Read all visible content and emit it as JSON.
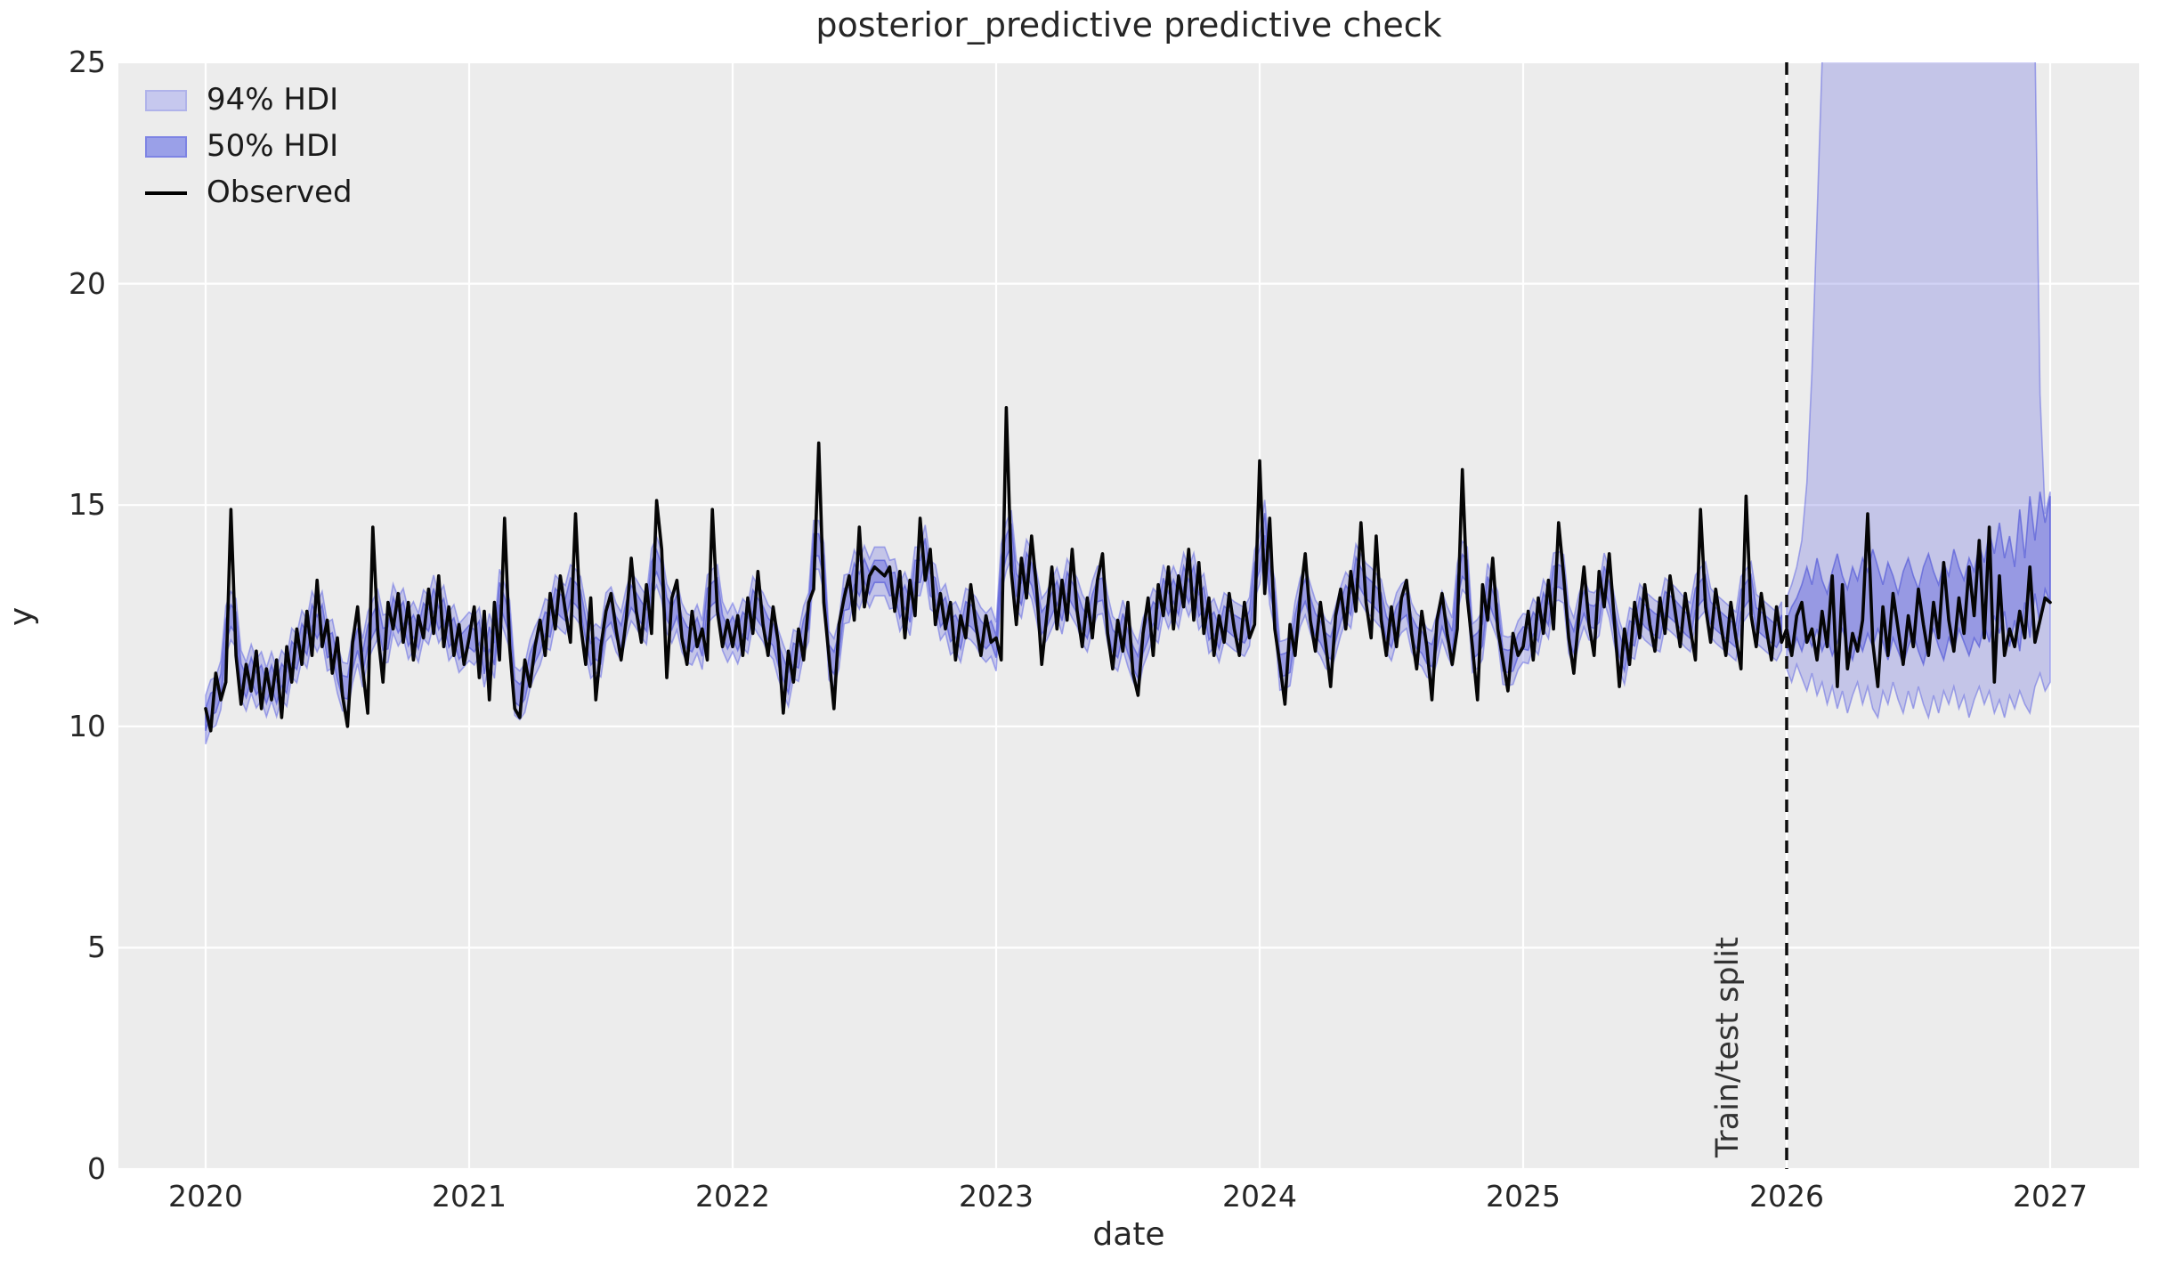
{
  "figure": {
    "title": "posterior_predictive predictive check",
    "xlabel": "date",
    "ylabel": "y",
    "plot_background": "#ececec",
    "grid_color": "#ffffff",
    "text_color": "#262626"
  },
  "legend": {
    "items": [
      {
        "label": "94% HDI",
        "type": "patch",
        "fill": "#c6c8ee",
        "edge": "#b0b3ea"
      },
      {
        "label": "50% HDI",
        "type": "patch",
        "fill": "#9aa0e8",
        "edge": "#7e84e4"
      },
      {
        "label": "Observed",
        "type": "line",
        "color": "#000000"
      }
    ]
  },
  "split": {
    "label": "Train/test split",
    "t": 2026.0,
    "line_color": "#0d0d0d"
  },
  "chart_data": {
    "type": "line",
    "title": "posterior_predictive predictive check",
    "xlabel": "date",
    "ylabel": "y",
    "xlim": [
      2019.669,
      2027.338
    ],
    "ylim": [
      0,
      25
    ],
    "grid": true,
    "legend_position": "upper left",
    "x_ticks": [
      2020,
      2021,
      2022,
      2023,
      2024,
      2025,
      2026,
      2027
    ],
    "x_tick_labels": [
      "2020",
      "2021",
      "2022",
      "2023",
      "2024",
      "2025",
      "2026",
      "2027"
    ],
    "y_ticks": [
      0,
      5,
      10,
      15,
      20,
      25
    ],
    "y_tick_labels": [
      "0",
      "5",
      "10",
      "15",
      "20",
      "25"
    ],
    "colors": {
      "band_base": "rgba(92,98,222,0.28)",
      "band_base_stroke": "rgba(100,105,225,0.55)",
      "band_inner": "rgba(88,94,220,0.42)",
      "band_inner_stroke": "rgba(80,86,215,0.65)",
      "observed": "#050505",
      "gridline": "#ffffff"
    },
    "observed": {
      "t_start": 2020.0,
      "dt_years": 0.0192308,
      "values": [
        10.4,
        9.9,
        11.2,
        10.6,
        11.0,
        14.9,
        11.6,
        10.5,
        11.4,
        10.8,
        11.7,
        10.4,
        11.3,
        10.6,
        11.5,
        10.2,
        11.8,
        11.0,
        12.2,
        11.4,
        12.6,
        11.6,
        13.3,
        11.8,
        12.4,
        11.2,
        12.0,
        10.7,
        10.0,
        11.9,
        12.7,
        11.3,
        10.3,
        14.5,
        12.1,
        11.0,
        12.8,
        12.2,
        13.0,
        11.9,
        12.8,
        11.5,
        12.5,
        12.0,
        13.1,
        12.1,
        13.4,
        11.8,
        12.7,
        11.6,
        12.3,
        11.4,
        12.0,
        12.7,
        11.1,
        12.6,
        10.6,
        12.8,
        11.5,
        14.7,
        11.8,
        10.4,
        10.2,
        11.5,
        10.9,
        11.8,
        12.4,
        11.6,
        13.0,
        12.2,
        13.4,
        12.6,
        11.9,
        14.8,
        12.3,
        11.4,
        12.9,
        10.6,
        11.8,
        12.6,
        13.0,
        12.2,
        11.5,
        12.4,
        13.8,
        12.6,
        11.9,
        13.2,
        12.1,
        15.1,
        14.0,
        11.1,
        12.9,
        13.3,
        12.0,
        11.4,
        12.6,
        11.8,
        12.2,
        11.5,
        14.9,
        12.6,
        11.8,
        12.4,
        11.8,
        12.5,
        11.6,
        12.9,
        12.1,
        13.5,
        12.3,
        11.6,
        12.7,
        11.9,
        10.3,
        11.7,
        11.0,
        12.2,
        11.5,
        12.8,
        13.1,
        16.4,
        12.8,
        11.6,
        10.4,
        12.3,
        12.9,
        13.4,
        12.4,
        14.5,
        12.7,
        13.4,
        13.6,
        13.5,
        13.4,
        13.6,
        12.6,
        13.5,
        12.0,
        13.3,
        12.5,
        14.7,
        13.3,
        14.0,
        12.3,
        13.0,
        12.2,
        12.8,
        11.5,
        12.5,
        12.0,
        13.2,
        12.3,
        11.6,
        12.5,
        11.9,
        12.0,
        11.5,
        17.2,
        13.5,
        12.3,
        13.8,
        12.9,
        14.3,
        13.1,
        11.4,
        12.5,
        13.6,
        12.2,
        13.3,
        12.4,
        14.0,
        12.6,
        11.8,
        12.9,
        12.0,
        13.3,
        13.9,
        12.1,
        11.3,
        12.4,
        11.7,
        12.8,
        11.2,
        10.7,
        12.1,
        12.9,
        11.6,
        13.2,
        12.5,
        13.6,
        12.2,
        13.4,
        12.7,
        14.0,
        12.4,
        13.7,
        12.1,
        12.9,
        11.6,
        12.5,
        11.9,
        13.0,
        12.2,
        11.6,
        12.8,
        12.0,
        12.3,
        16.0,
        13.0,
        14.7,
        12.2,
        11.4,
        10.5,
        12.3,
        11.6,
        12.9,
        13.9,
        12.4,
        11.7,
        12.8,
        11.9,
        10.9,
        12.5,
        13.1,
        12.2,
        13.5,
        12.6,
        14.6,
        12.8,
        12.0,
        14.3,
        12.4,
        11.6,
        12.7,
        11.8,
        12.9,
        13.3,
        12.1,
        11.3,
        12.6,
        11.8,
        10.6,
        12.4,
        13.0,
        12.1,
        11.4,
        12.2,
        15.8,
        12.9,
        11.8,
        10.6,
        13.2,
        12.4,
        13.8,
        12.2,
        11.5,
        10.8,
        12.1,
        11.6,
        11.8,
        12.6,
        11.5,
        12.9,
        12.1,
        13.3,
        12.2,
        14.6,
        13.4,
        12.0,
        11.2,
        12.5,
        13.6,
        12.3,
        11.6,
        13.5,
        12.7,
        13.9,
        12.4,
        10.9,
        12.2,
        11.4,
        12.8,
        12.0,
        13.2,
        12.3,
        11.7,
        12.9,
        12.1,
        13.4,
        12.6,
        11.8,
        13.0,
        12.2,
        11.5,
        14.9,
        12.7,
        11.9,
        13.1,
        12.3,
        11.6,
        12.8,
        12.0,
        11.3,
        15.2,
        12.5,
        11.8,
        13.0,
        12.2,
        11.5,
        12.7,
        11.9,
        12.2,
        11.6,
        12.5,
        12.8,
        11.9,
        12.2,
        11.5,
        12.6,
        11.8,
        13.4,
        10.9,
        13.2,
        11.3,
        12.1,
        11.7,
        12.4,
        14.8,
        11.9,
        10.9,
        12.7,
        11.6,
        13.0,
        12.2,
        11.4,
        12.5,
        11.8,
        13.1,
        12.3,
        11.6,
        12.8,
        12.0,
        13.7,
        12.4,
        11.7,
        12.9,
        12.1,
        13.6,
        12.5,
        14.2,
        12.0,
        14.5,
        11.0,
        13.4,
        11.6,
        12.2,
        11.8,
        12.6,
        12.0,
        13.6,
        11.9,
        12.4,
        12.9,
        12.8
      ]
    },
    "hdi_insample": {
      "t_end": 2026.0,
      "smooth_window": 3,
      "halfwidth_94": 0.55,
      "halfwidth_50": 0.25
    },
    "hdi_forecast": {
      "t_start": 2026.0,
      "dt_years": 0.0192308,
      "hi94": [
        12.9,
        13.2,
        13.6,
        14.2,
        15.5,
        18.0,
        21.5,
        25.0,
        27,
        27,
        27,
        27,
        27,
        27,
        27,
        27,
        27,
        27,
        27,
        27,
        27,
        27,
        27,
        27,
        27,
        27,
        27,
        27,
        27,
        27,
        27,
        27,
        27,
        27,
        27,
        27,
        27,
        27,
        27,
        27,
        27,
        27,
        27,
        27,
        27,
        27,
        27,
        27,
        27,
        25.5,
        17.5,
        14.8,
        15.3
      ],
      "lo94": [
        11.3,
        11.0,
        11.4,
        11.1,
        10.8,
        11.2,
        10.7,
        11.0,
        10.5,
        10.9,
        10.4,
        10.8,
        10.3,
        10.7,
        11.0,
        10.5,
        10.9,
        10.4,
        10.2,
        10.8,
        10.5,
        11.0,
        10.6,
        10.3,
        10.8,
        10.4,
        10.9,
        10.5,
        10.2,
        10.7,
        10.3,
        10.8,
        10.5,
        10.9,
        10.4,
        10.7,
        10.2,
        10.6,
        10.9,
        10.5,
        10.8,
        10.3,
        10.6,
        10.2,
        10.7,
        10.4,
        10.8,
        10.5,
        10.3,
        10.9,
        11.2,
        10.8,
        11.0
      ],
      "hi50": [
        12.4,
        12.7,
        12.9,
        13.2,
        13.6,
        13.2,
        13.8,
        13.3,
        13.0,
        13.5,
        13.9,
        13.4,
        13.1,
        13.6,
        13.3,
        13.8,
        13.5,
        14.0,
        13.6,
        13.2,
        13.7,
        13.4,
        13.0,
        13.5,
        13.8,
        13.4,
        13.1,
        13.6,
        13.9,
        13.5,
        13.2,
        13.7,
        13.4,
        14.0,
        13.6,
        13.3,
        13.8,
        13.5,
        14.1,
        13.7,
        14.4,
        13.9,
        14.6,
        13.8,
        14.3,
        13.6,
        14.9,
        13.8,
        15.2,
        14.2,
        15.3,
        14.6,
        15.2
      ],
      "lo50": [
        11.8,
        11.6,
        12.0,
        11.7,
        12.1,
        11.8,
        12.2,
        11.7,
        12.0,
        11.6,
        11.9,
        12.2,
        11.8,
        11.5,
        12.0,
        11.7,
        12.1,
        11.8,
        12.2,
        11.9,
        11.5,
        12.0,
        11.7,
        11.4,
        11.8,
        12.1,
        11.7,
        11.4,
        11.9,
        12.2,
        11.8,
        11.5,
        12.0,
        11.7,
        12.2,
        11.9,
        11.6,
        12.0,
        11.8,
        12.3,
        11.9,
        12.5,
        12.1,
        12.6,
        11.8,
        12.4,
        11.7,
        12.8,
        12.0,
        13.0,
        12.3,
        13.1,
        12.8
      ]
    }
  }
}
